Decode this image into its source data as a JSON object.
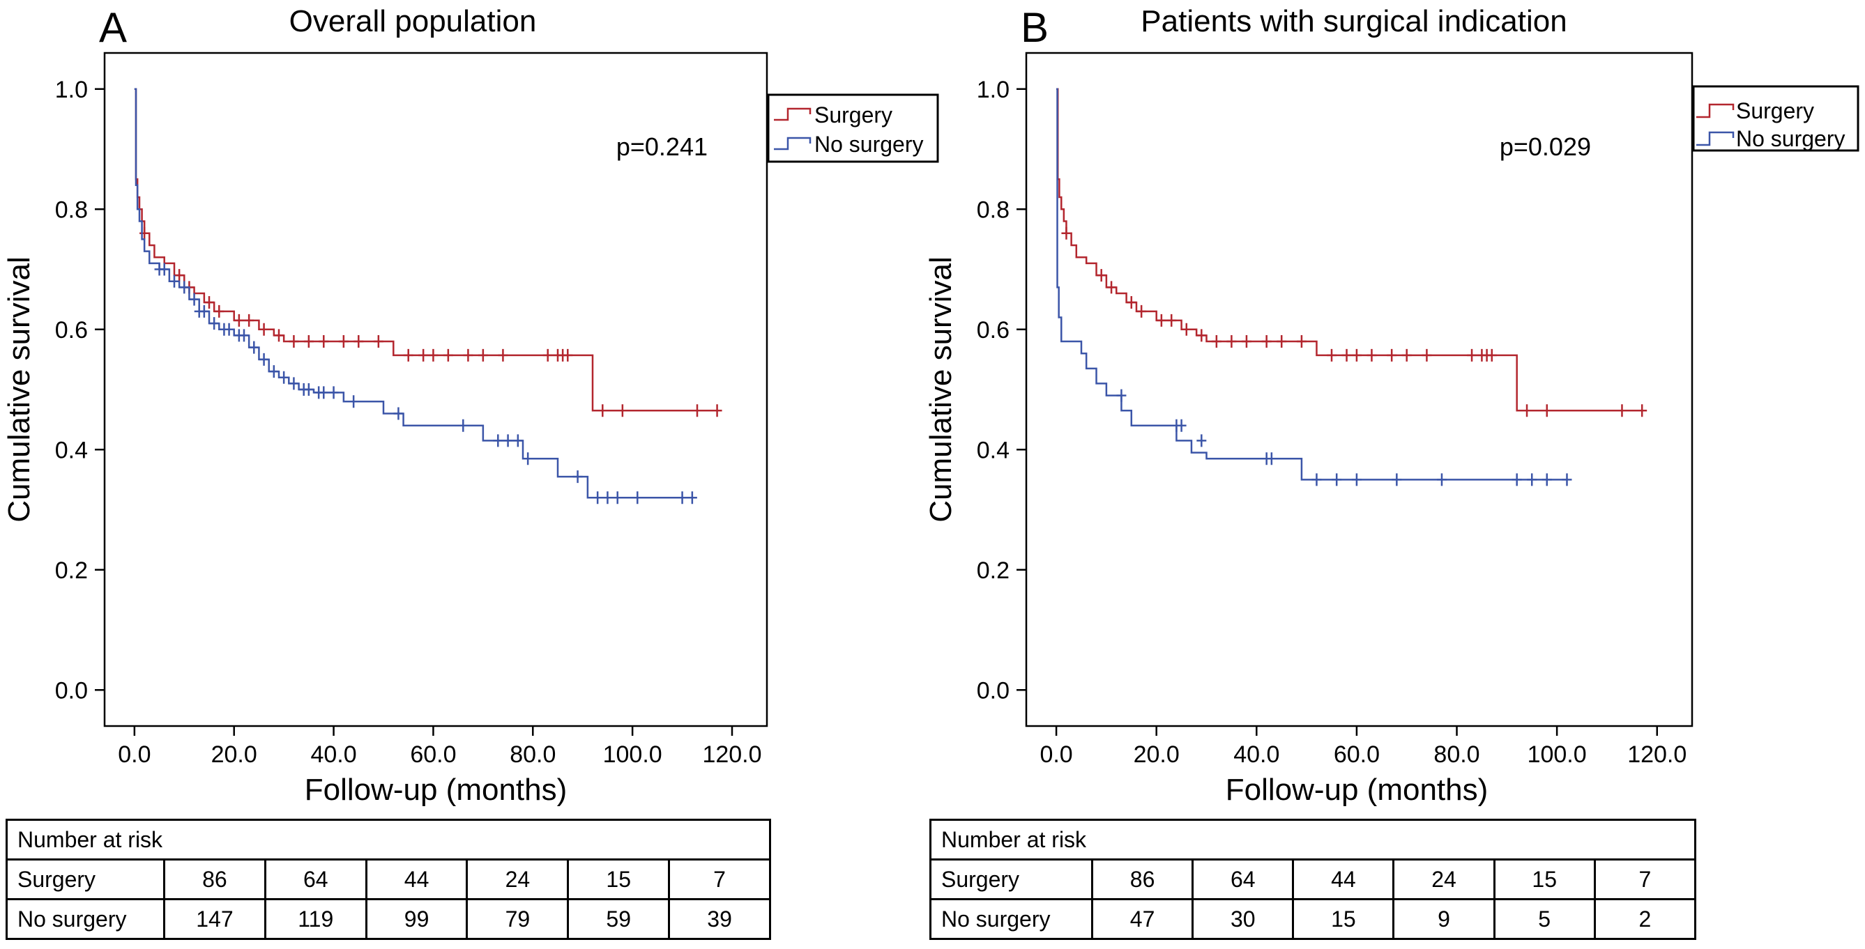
{
  "colors": {
    "surgery": "#b3262e",
    "no_surgery": "#3b55a8",
    "axis": "#000000"
  },
  "chart_data": [
    {
      "panel": "A",
      "type": "line",
      "step": true,
      "title": "Overall population",
      "xlabel": "Follow-up (months)",
      "ylabel": "Cumulative survival",
      "xlim": [
        -6,
        127
      ],
      "ylim": [
        -0.06,
        1.06
      ],
      "x_ticks": [
        0,
        20,
        40,
        60,
        80,
        100,
        120
      ],
      "x_tick_labels": [
        "0.0",
        "20.0",
        "40.0",
        "60.0",
        "80.0",
        "100.0",
        "120.0"
      ],
      "y_ticks": [
        0,
        0.2,
        0.4,
        0.6,
        0.8,
        1.0
      ],
      "y_tick_labels": [
        "0.0",
        "0.2",
        "0.4",
        "0.6",
        "0.8",
        "1.0"
      ],
      "annotation": "p=0.241",
      "legend": {
        "position": "top-right",
        "entries": [
          "Surgery",
          "No surgery"
        ]
      },
      "series": [
        {
          "name": "Surgery",
          "color_key": "surgery",
          "x": [
            0,
            0.3,
            0.6,
            1,
            1.5,
            2,
            3,
            4,
            6,
            8,
            10,
            12,
            14,
            16,
            20,
            25,
            28,
            30,
            52,
            92,
            117
          ],
          "y": [
            1.0,
            0.85,
            0.82,
            0.8,
            0.78,
            0.76,
            0.74,
            0.72,
            0.71,
            0.69,
            0.67,
            0.66,
            0.645,
            0.63,
            0.615,
            0.6,
            0.59,
            0.58,
            0.557,
            0.465,
            0.465
          ],
          "censored": [
            {
              "x": 2,
              "y": 0.76
            },
            {
              "x": 9,
              "y": 0.69
            },
            {
              "x": 11,
              "y": 0.67
            },
            {
              "x": 15,
              "y": 0.645
            },
            {
              "x": 17,
              "y": 0.63
            },
            {
              "x": 21,
              "y": 0.615
            },
            {
              "x": 23,
              "y": 0.615
            },
            {
              "x": 26,
              "y": 0.6
            },
            {
              "x": 29,
              "y": 0.59
            },
            {
              "x": 32,
              "y": 0.58
            },
            {
              "x": 35,
              "y": 0.58
            },
            {
              "x": 38,
              "y": 0.58
            },
            {
              "x": 42,
              "y": 0.58
            },
            {
              "x": 45,
              "y": 0.58
            },
            {
              "x": 49,
              "y": 0.58
            },
            {
              "x": 55,
              "y": 0.557
            },
            {
              "x": 58,
              "y": 0.557
            },
            {
              "x": 60,
              "y": 0.557
            },
            {
              "x": 63,
              "y": 0.557
            },
            {
              "x": 67,
              "y": 0.557
            },
            {
              "x": 70,
              "y": 0.557
            },
            {
              "x": 74,
              "y": 0.557
            },
            {
              "x": 83,
              "y": 0.557
            },
            {
              "x": 85,
              "y": 0.557
            },
            {
              "x": 86,
              "y": 0.557
            },
            {
              "x": 87,
              "y": 0.557
            },
            {
              "x": 94,
              "y": 0.465
            },
            {
              "x": 98,
              "y": 0.465
            },
            {
              "x": 113,
              "y": 0.465
            },
            {
              "x": 117,
              "y": 0.465
            }
          ]
        },
        {
          "name": "No surgery",
          "color_key": "no_surgery",
          "x": [
            0,
            0.3,
            0.6,
            1,
            1.5,
            2,
            3,
            5,
            7,
            9,
            11,
            13,
            15,
            17,
            20,
            23,
            25,
            27,
            29,
            31,
            33,
            36,
            42,
            50,
            54,
            70,
            78,
            85,
            91,
            112
          ],
          "y": [
            1.0,
            0.84,
            0.8,
            0.78,
            0.75,
            0.73,
            0.71,
            0.7,
            0.68,
            0.67,
            0.65,
            0.63,
            0.61,
            0.6,
            0.59,
            0.57,
            0.55,
            0.53,
            0.52,
            0.51,
            0.5,
            0.495,
            0.48,
            0.46,
            0.44,
            0.415,
            0.385,
            0.355,
            0.32,
            0.32
          ],
          "censored": [
            {
              "x": 5,
              "y": 0.7
            },
            {
              "x": 6,
              "y": 0.7
            },
            {
              "x": 8,
              "y": 0.68
            },
            {
              "x": 10,
              "y": 0.67
            },
            {
              "x": 12,
              "y": 0.65
            },
            {
              "x": 13,
              "y": 0.63
            },
            {
              "x": 14,
              "y": 0.63
            },
            {
              "x": 16,
              "y": 0.61
            },
            {
              "x": 18,
              "y": 0.6
            },
            {
              "x": 19,
              "y": 0.6
            },
            {
              "x": 21,
              "y": 0.59
            },
            {
              "x": 22,
              "y": 0.59
            },
            {
              "x": 24,
              "y": 0.57
            },
            {
              "x": 26,
              "y": 0.55
            },
            {
              "x": 28,
              "y": 0.53
            },
            {
              "x": 30,
              "y": 0.52
            },
            {
              "x": 32,
              "y": 0.51
            },
            {
              "x": 34,
              "y": 0.5
            },
            {
              "x": 35,
              "y": 0.5
            },
            {
              "x": 37,
              "y": 0.495
            },
            {
              "x": 38,
              "y": 0.495
            },
            {
              "x": 40,
              "y": 0.495
            },
            {
              "x": 44,
              "y": 0.48
            },
            {
              "x": 53,
              "y": 0.46
            },
            {
              "x": 66,
              "y": 0.44
            },
            {
              "x": 73,
              "y": 0.415
            },
            {
              "x": 75,
              "y": 0.415
            },
            {
              "x": 77,
              "y": 0.415
            },
            {
              "x": 79,
              "y": 0.385
            },
            {
              "x": 89,
              "y": 0.355
            },
            {
              "x": 93,
              "y": 0.32
            },
            {
              "x": 95,
              "y": 0.32
            },
            {
              "x": 97,
              "y": 0.32
            },
            {
              "x": 101,
              "y": 0.32
            },
            {
              "x": 110,
              "y": 0.32
            },
            {
              "x": 112,
              "y": 0.32
            }
          ]
        }
      ],
      "risk_table": {
        "caption": "Number at risk",
        "rows": [
          {
            "label": "Surgery",
            "values": [
              "86",
              "64",
              "44",
              "24",
              "15",
              "7"
            ]
          },
          {
            "label": "No surgery",
            "values": [
              "147",
              "119",
              "99",
              "79",
              "59",
              "39"
            ]
          }
        ]
      }
    },
    {
      "panel": "B",
      "type": "line",
      "step": true,
      "title": "Patients with surgical indication",
      "xlabel": "Follow-up (months)",
      "ylabel": "Cumulative survival",
      "xlim": [
        -6,
        127
      ],
      "ylim": [
        -0.06,
        1.06
      ],
      "x_ticks": [
        0,
        20,
        40,
        60,
        80,
        100,
        120
      ],
      "x_tick_labels": [
        "0.0",
        "20.0",
        "40.0",
        "60.0",
        "80.0",
        "100.0",
        "120.0"
      ],
      "y_ticks": [
        0,
        0.2,
        0.4,
        0.6,
        0.8,
        1.0
      ],
      "y_tick_labels": [
        "0.0",
        "0.2",
        "0.4",
        "0.6",
        "0.8",
        "1.0"
      ],
      "annotation": "p=0.029",
      "legend": {
        "position": "top-right",
        "entries": [
          "Surgery",
          "No surgery"
        ]
      },
      "series": [
        {
          "name": "Surgery",
          "color_key": "surgery",
          "x": [
            0,
            0.3,
            0.6,
            1,
            1.5,
            2,
            3,
            4,
            6,
            8,
            10,
            12,
            14,
            16,
            20,
            25,
            28,
            30,
            52,
            92,
            117
          ],
          "y": [
            1.0,
            0.85,
            0.82,
            0.8,
            0.78,
            0.76,
            0.74,
            0.72,
            0.71,
            0.69,
            0.67,
            0.66,
            0.645,
            0.63,
            0.615,
            0.6,
            0.59,
            0.58,
            0.557,
            0.465,
            0.465
          ],
          "censored": [
            {
              "x": 2,
              "y": 0.76
            },
            {
              "x": 9,
              "y": 0.69
            },
            {
              "x": 11,
              "y": 0.67
            },
            {
              "x": 15,
              "y": 0.645
            },
            {
              "x": 17,
              "y": 0.63
            },
            {
              "x": 21,
              "y": 0.615
            },
            {
              "x": 23,
              "y": 0.615
            },
            {
              "x": 26,
              "y": 0.6
            },
            {
              "x": 29,
              "y": 0.59
            },
            {
              "x": 32,
              "y": 0.58
            },
            {
              "x": 35,
              "y": 0.58
            },
            {
              "x": 38,
              "y": 0.58
            },
            {
              "x": 42,
              "y": 0.58
            },
            {
              "x": 45,
              "y": 0.58
            },
            {
              "x": 49,
              "y": 0.58
            },
            {
              "x": 55,
              "y": 0.557
            },
            {
              "x": 58,
              "y": 0.557
            },
            {
              "x": 60,
              "y": 0.557
            },
            {
              "x": 63,
              "y": 0.557
            },
            {
              "x": 67,
              "y": 0.557
            },
            {
              "x": 70,
              "y": 0.557
            },
            {
              "x": 74,
              "y": 0.557
            },
            {
              "x": 83,
              "y": 0.557
            },
            {
              "x": 85,
              "y": 0.557
            },
            {
              "x": 86,
              "y": 0.557
            },
            {
              "x": 87,
              "y": 0.557
            },
            {
              "x": 94,
              "y": 0.465
            },
            {
              "x": 98,
              "y": 0.465
            },
            {
              "x": 113,
              "y": 0.465
            },
            {
              "x": 117,
              "y": 0.465
            }
          ]
        },
        {
          "name": "No surgery",
          "color_key": "no_surgery",
          "x": [
            0,
            0.2,
            0.5,
            1,
            5,
            6,
            8,
            10,
            13,
            15,
            24,
            27,
            30,
            49,
            102
          ],
          "y": [
            1.0,
            0.67,
            0.62,
            0.58,
            0.56,
            0.535,
            0.51,
            0.49,
            0.465,
            0.44,
            0.415,
            0.395,
            0.385,
            0.35,
            0.35
          ],
          "censored": [
            {
              "x": 13,
              "y": 0.49
            },
            {
              "x": 24,
              "y": 0.44
            },
            {
              "x": 25,
              "y": 0.44
            },
            {
              "x": 29,
              "y": 0.415
            },
            {
              "x": 42,
              "y": 0.385
            },
            {
              "x": 43,
              "y": 0.385
            },
            {
              "x": 52,
              "y": 0.35
            },
            {
              "x": 56,
              "y": 0.35
            },
            {
              "x": 60,
              "y": 0.35
            },
            {
              "x": 68,
              "y": 0.35
            },
            {
              "x": 77,
              "y": 0.35
            },
            {
              "x": 92,
              "y": 0.35
            },
            {
              "x": 95,
              "y": 0.35
            },
            {
              "x": 98,
              "y": 0.35
            },
            {
              "x": 102,
              "y": 0.35
            }
          ]
        }
      ],
      "risk_table": {
        "caption": "Number at risk",
        "rows": [
          {
            "label": "Surgery",
            "values": [
              "86",
              "64",
              "44",
              "24",
              "15",
              "7"
            ]
          },
          {
            "label": "No surgery",
            "values": [
              "47",
              "30",
              "15",
              "9",
              "5",
              "2"
            ]
          }
        ]
      }
    }
  ]
}
